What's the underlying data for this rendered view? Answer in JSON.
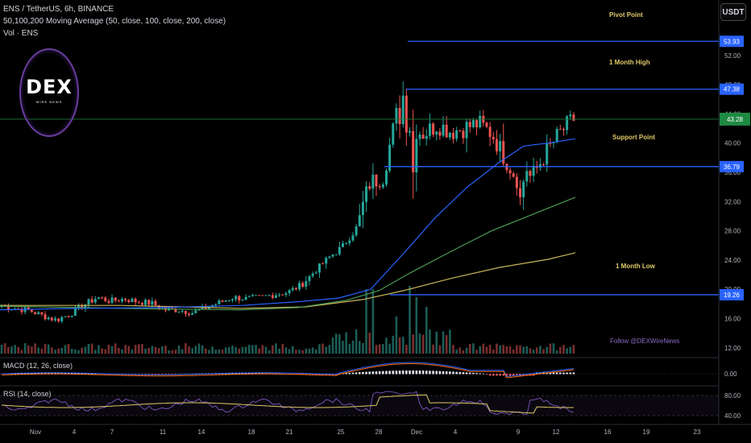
{
  "header": {
    "line1": "ENS / TetherUS, 6h, BINANCE",
    "line2": "50,100,200 Moving Average (50, close, 100, close, 200, close)",
    "line3": "Vol · ENS"
  },
  "currency_button": "USDT",
  "logo": {
    "text": "DEX",
    "subtext": "WIRE NEWS"
  },
  "follow_text": "Follow @DEXWireNews",
  "macd_label": "MACD (12, 26, close)",
  "rsi_label": "RSI (14, close)",
  "colors": {
    "up": "#26a69a",
    "down": "#ef5350",
    "ma50": "#2962ff",
    "ma100": "#4c9a55",
    "ma200": "#c9b458",
    "hline": "#2962ff",
    "annotation": "#e0c96a",
    "price_line": "#1e7a3c"
  },
  "chart_data": {
    "type": "candlestick",
    "symbol": "ENS / TetherUS",
    "timeframe": "6h",
    "exchange": "BINANCE",
    "y_axis": {
      "ticks": [
        "52.00",
        "48.00",
        "44.00",
        "40.00",
        "36.00",
        "32.00",
        "28.00",
        "24.00",
        "20.00",
        "16.00",
        "12.00"
      ],
      "range": [
        8.5,
        56
      ]
    },
    "x_axis": {
      "ticks": [
        "Nov",
        "4",
        "7",
        "11",
        "14",
        "18",
        "21",
        "25",
        "28",
        "Dec",
        "4",
        "9",
        "12",
        "16",
        "19",
        "23"
      ]
    },
    "horizontal_lines": [
      {
        "label": "Pivot Point",
        "value": 53.93,
        "tag": "53.93"
      },
      {
        "label": "1 Month High",
        "value": 47.38,
        "tag": "47.38"
      },
      {
        "label": "Support Point",
        "value": 36.79,
        "tag": "36.79"
      },
      {
        "label": "1 Month Low",
        "value": 19.26,
        "tag": "19.26"
      }
    ],
    "current_price": {
      "value": 43.28,
      "tag": "43.28"
    },
    "price_anchors": [
      [
        "Nov",
        17.8
      ],
      [
        "1",
        17.4
      ],
      [
        "2",
        17.1
      ],
      [
        "3",
        16.4
      ],
      [
        "4",
        15.8
      ],
      [
        "5",
        16.6
      ],
      [
        "6",
        17.8
      ],
      [
        "7",
        18.9
      ],
      [
        "8",
        18.4
      ],
      [
        "9",
        18.7
      ],
      [
        "10",
        18.3
      ],
      [
        "11",
        18.1
      ],
      [
        "12",
        17.2
      ],
      [
        "13",
        17.2
      ],
      [
        "14",
        16.8
      ],
      [
        "15",
        17.5
      ],
      [
        "16",
        18.2
      ],
      [
        "17",
        18.9
      ],
      [
        "18",
        18.7
      ],
      [
        "19",
        18.9
      ],
      [
        "20",
        19.3
      ],
      [
        "21",
        19.6
      ],
      [
        "22",
        20.6
      ],
      [
        "23",
        22.5
      ],
      [
        "24",
        24.3
      ],
      [
        "25",
        25.8
      ],
      [
        "26",
        28.2
      ],
      [
        "27",
        34.5
      ],
      [
        "28",
        35.5
      ],
      [
        "29",
        44.0
      ],
      [
        "Dec",
        42.2
      ],
      [
        "2",
        41.3
      ],
      [
        "3",
        42.6
      ],
      [
        "4",
        41.6
      ],
      [
        "5",
        42.1
      ],
      [
        "6",
        42.7
      ],
      [
        "7",
        41.3
      ],
      [
        "8",
        37.8
      ],
      [
        "9",
        34.6
      ],
      [
        "10",
        35.6
      ],
      [
        "11",
        38.8
      ],
      [
        "12",
        41.4
      ],
      [
        "13",
        43.3
      ]
    ],
    "ma50": [
      [
        0,
        17.2
      ],
      [
        100,
        17.4
      ],
      [
        200,
        17.5
      ],
      [
        300,
        17.8
      ],
      [
        370,
        18.3
      ],
      [
        420,
        18.8
      ],
      [
        460,
        20.0
      ],
      [
        500,
        24.8
      ],
      [
        540,
        29.8
      ],
      [
        580,
        34.0
      ],
      [
        620,
        37.4
      ],
      [
        650,
        39.6
      ],
      [
        680,
        40.0
      ],
      [
        714,
        40.6
      ]
    ],
    "ma100": [
      [
        0,
        17.7
      ],
      [
        100,
        17.5
      ],
      [
        200,
        17.3
      ],
      [
        300,
        17.2
      ],
      [
        370,
        17.5
      ],
      [
        430,
        18.5
      ],
      [
        470,
        19.8
      ],
      [
        510,
        22.3
      ],
      [
        560,
        25.2
      ],
      [
        610,
        28.0
      ],
      [
        660,
        30.2
      ],
      [
        714,
        32.6
      ]
    ],
    "ma200": [
      [
        0,
        17.8
      ],
      [
        150,
        17.8
      ],
      [
        300,
        17.4
      ],
      [
        380,
        17.6
      ],
      [
        450,
        18.6
      ],
      [
        500,
        19.8
      ],
      [
        560,
        21.5
      ],
      [
        620,
        23.0
      ],
      [
        680,
        24.1
      ],
      [
        714,
        25.0
      ]
    ],
    "macd": {
      "label": "MACD (12, 26, close)",
      "ticks": [
        "0.00"
      ]
    },
    "rsi": {
      "label": "RSI (14, close)",
      "ticks": [
        "80.00",
        "40.00"
      ]
    }
  }
}
